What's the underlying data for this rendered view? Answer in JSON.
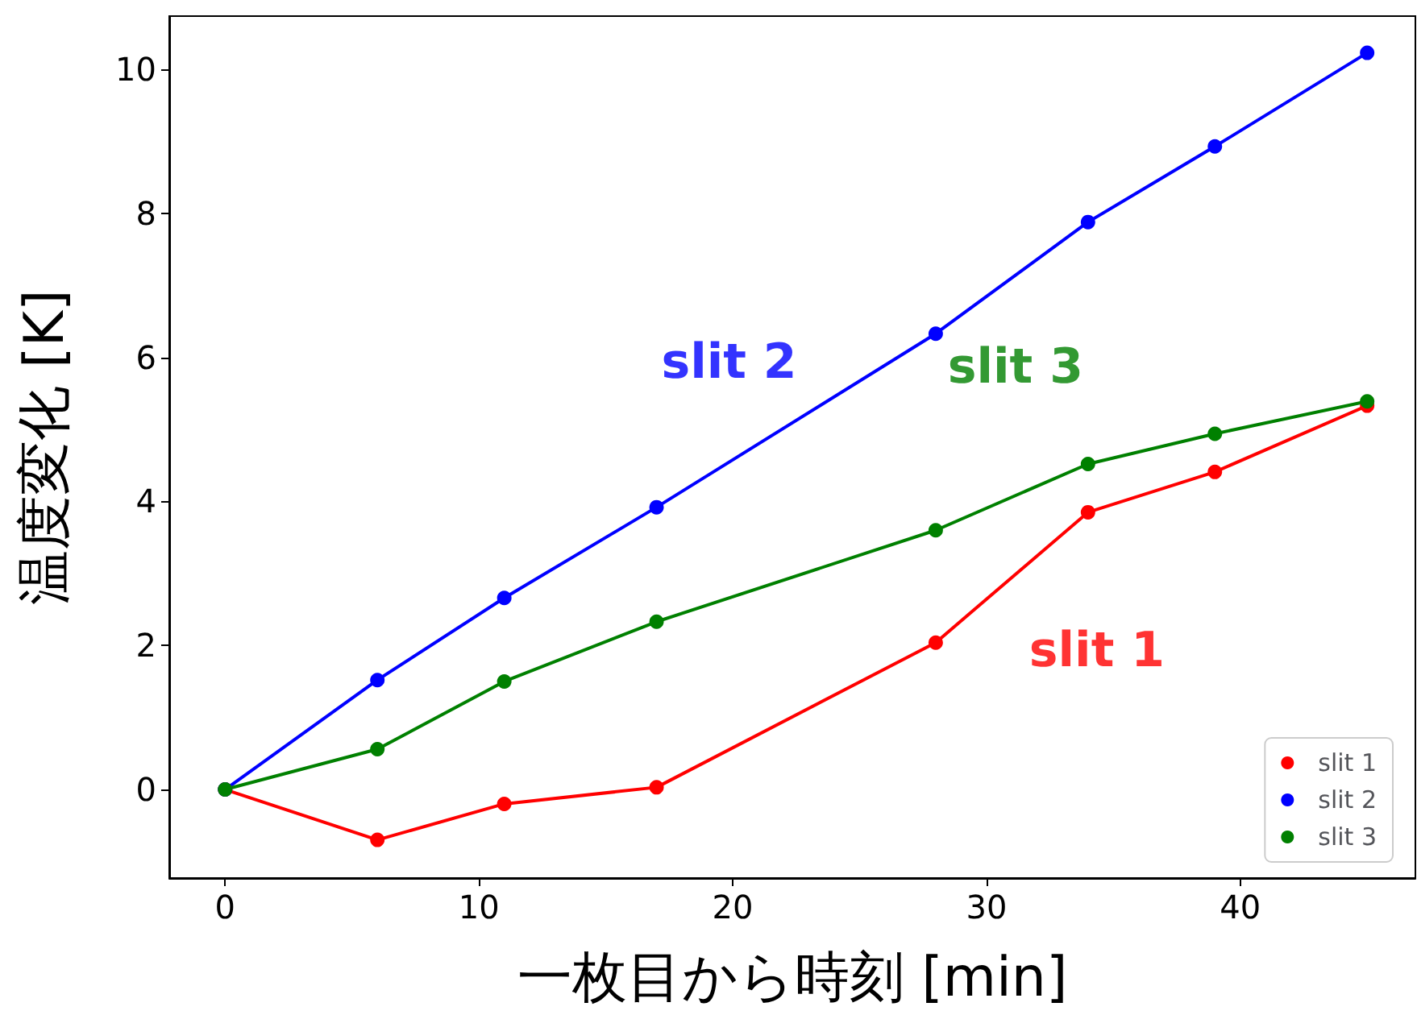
{
  "chart_data": {
    "type": "line",
    "xlabel": "一枚目から時刻 [min]",
    "ylabel": "温度変化 [K]",
    "x": [
      0,
      6,
      11,
      17,
      28,
      34,
      39,
      45
    ],
    "series": [
      {
        "name": "slit 1",
        "color": "#ff0000",
        "values": [
          0,
          -0.7,
          -0.2,
          0.03,
          2.04,
          3.85,
          4.41,
          5.33
        ]
      },
      {
        "name": "slit 2",
        "color": "#0000ff",
        "values": [
          0,
          1.52,
          2.66,
          3.92,
          6.33,
          7.88,
          8.93,
          10.23
        ]
      },
      {
        "name": "slit 3",
        "color": "#008000",
        "values": [
          0,
          0.56,
          1.5,
          2.33,
          3.6,
          4.52,
          4.94,
          5.39
        ]
      }
    ],
    "xlim": [
      -2.2,
      46.9
    ],
    "ylim": [
      -1.23,
      10.74
    ],
    "xticks": [
      0,
      10,
      20,
      30,
      40
    ],
    "yticks": [
      0,
      2,
      4,
      6,
      8,
      10
    ],
    "annotations": [
      "slit 1",
      "slit 2",
      "slit 3"
    ],
    "grid": false,
    "legend": "bottom right",
    "marker": "circle",
    "line_style": "solid"
  }
}
